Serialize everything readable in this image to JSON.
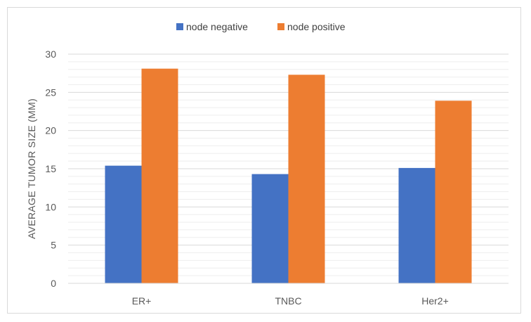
{
  "chart_data": {
    "type": "bar",
    "title": "",
    "xlabel": "",
    "ylabel": "AVERAGE TUMOR SIZE (MM)",
    "categories": [
      "ER+",
      "TNBC",
      "Her2+"
    ],
    "series": [
      {
        "name": "node negative",
        "values": [
          15.4,
          14.3,
          15.1
        ],
        "color": "#4472c4"
      },
      {
        "name": "node positive",
        "values": [
          28.1,
          27.3,
          23.9
        ],
        "color": "#ed7d31"
      }
    ],
    "ylim": [
      0,
      30
    ],
    "yticks": [
      "0",
      "5",
      "10",
      "15",
      "20",
      "25",
      "30"
    ],
    "minor_grid_step": 1,
    "grid": true,
    "legend": "top-center"
  }
}
